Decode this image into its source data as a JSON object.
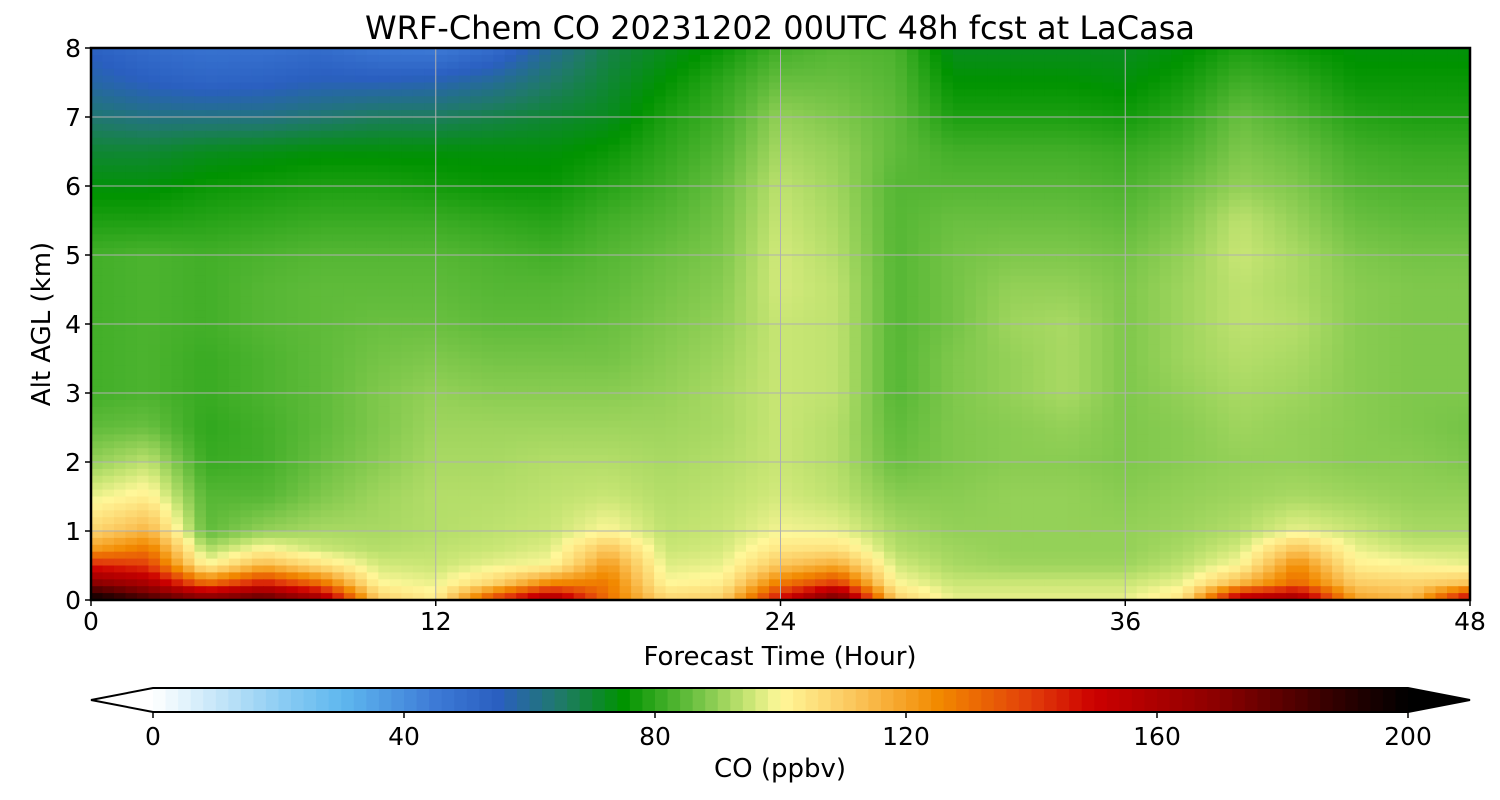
{
  "chart_data": {
    "type": "heatmap",
    "title": "WRF-Chem CO  20231202 00UTC 48h fcst at LaCasa",
    "xlabel": "Forecast Time (Hour)",
    "ylabel": "Alt AGL (km)",
    "xlim": [
      0,
      48
    ],
    "ylim": [
      0,
      8
    ],
    "xticks": [
      0,
      12,
      24,
      36,
      48
    ],
    "yticks": [
      0,
      1,
      2,
      3,
      4,
      5,
      6,
      7,
      8
    ],
    "grid": true,
    "colorbar": {
      "label": "CO  (ppbv)",
      "range": [
        0,
        200
      ],
      "ticks": [
        0,
        40,
        80,
        120,
        160,
        200
      ],
      "extend": "both",
      "placement": "bottom",
      "stops": [
        {
          "v": 0,
          "c": "#ffffff"
        },
        {
          "v": 20,
          "c": "#8ecdf3"
        },
        {
          "v": 30,
          "c": "#5fb8ef"
        },
        {
          "v": 45,
          "c": "#3d7ad6"
        },
        {
          "v": 55,
          "c": "#2a5fc0"
        },
        {
          "v": 65,
          "c": "#1f7a68"
        },
        {
          "v": 75,
          "c": "#009300"
        },
        {
          "v": 85,
          "c": "#5fbb3a"
        },
        {
          "v": 95,
          "c": "#c9e675"
        },
        {
          "v": 100,
          "c": "#fff799"
        },
        {
          "v": 112,
          "c": "#fbc55a"
        },
        {
          "v": 125,
          "c": "#f28a00"
        },
        {
          "v": 140,
          "c": "#e23d0a"
        },
        {
          "v": 150,
          "c": "#cc0000"
        },
        {
          "v": 170,
          "c": "#8a0000"
        },
        {
          "v": 190,
          "c": "#2a0000"
        },
        {
          "v": 200,
          "c": "#000000"
        }
      ]
    },
    "x": [
      0,
      2,
      4,
      6,
      8,
      10,
      12,
      14,
      16,
      18,
      20,
      22,
      24,
      26,
      28,
      30,
      32,
      34,
      36,
      38,
      40,
      42,
      44,
      46,
      48
    ],
    "y": [
      0,
      0.25,
      0.5,
      0.75,
      1,
      1.5,
      2,
      2.5,
      3,
      3.5,
      4,
      4.5,
      5,
      5.5,
      6,
      6.5,
      7,
      7.5,
      8
    ],
    "z": [
      [
        200,
        185,
        175,
        182,
        165,
        110,
        102,
        140,
        165,
        130,
        108,
        110,
        150,
        180,
        110,
        98,
        98,
        98,
        98,
        105,
        160,
        165,
        120,
        115,
        155
      ],
      [
        170,
        160,
        130,
        145,
        130,
        100,
        98,
        108,
        125,
        128,
        100,
        102,
        128,
        140,
        100,
        95,
        95,
        95,
        95,
        98,
        115,
        132,
        110,
        108,
        112
      ],
      [
        145,
        140,
        100,
        115,
        105,
        96,
        95,
        98,
        100,
        122,
        97,
        98,
        112,
        118,
        96,
        92,
        91,
        91,
        91,
        94,
        100,
        125,
        102,
        100,
        98
      ],
      [
        120,
        128,
        92,
        100,
        95,
        93,
        94,
        95,
        97,
        112,
        95,
        96,
        104,
        105,
        93,
        91,
        90,
        90,
        90,
        92,
        96,
        112,
        98,
        95,
        95
      ],
      [
        108,
        116,
        85,
        90,
        92,
        92,
        93,
        94,
        95,
        100,
        94,
        95,
        99,
        98,
        92,
        90,
        90,
        90,
        90,
        91,
        93,
        98,
        95,
        92,
        92
      ],
      [
        98,
        102,
        84,
        84,
        88,
        91,
        93,
        93,
        94,
        95,
        93,
        94,
        96,
        94,
        89,
        89,
        90,
        90,
        89,
        90,
        91,
        92,
        91,
        90,
        90
      ],
      [
        90,
        94,
        81,
        82,
        86,
        89,
        92,
        92,
        93,
        93,
        92,
        93,
        95,
        93,
        86,
        88,
        89,
        89,
        88,
        89,
        90,
        90,
        89,
        89,
        88
      ],
      [
        85,
        86,
        80,
        82,
        85,
        88,
        91,
        91,
        91,
        91,
        91,
        92,
        95,
        93,
        85,
        88,
        89,
        90,
        88,
        89,
        91,
        90,
        89,
        88,
        87
      ],
      [
        82,
        83,
        81,
        83,
        85,
        88,
        90,
        89,
        89,
        89,
        90,
        92,
        95,
        94,
        84,
        88,
        90,
        92,
        88,
        90,
        92,
        91,
        89,
        88,
        88
      ],
      [
        82,
        83,
        81,
        83,
        85,
        87,
        88,
        87,
        87,
        87,
        89,
        91,
        95,
        94,
        84,
        88,
        90,
        92,
        88,
        91,
        93,
        92,
        89,
        88,
        88
      ],
      [
        82,
        83,
        82,
        84,
        85,
        86,
        86,
        85,
        85,
        86,
        88,
        90,
        95,
        94,
        84,
        87,
        91,
        92,
        88,
        91,
        94,
        93,
        89,
        88,
        88
      ],
      [
        82,
        83,
        82,
        84,
        85,
        85,
        85,
        84,
        84,
        85,
        87,
        89,
        96,
        94,
        84,
        87,
        90,
        90,
        88,
        91,
        94,
        92,
        89,
        88,
        88
      ],
      [
        82,
        83,
        82,
        83,
        84,
        84,
        84,
        83,
        82,
        84,
        86,
        88,
        96,
        93,
        84,
        87,
        88,
        88,
        87,
        90,
        95,
        92,
        88,
        87,
        87
      ],
      [
        78,
        78,
        79,
        80,
        81,
        81,
        81,
        80,
        79,
        82,
        84,
        87,
        95,
        92,
        84,
        86,
        86,
        86,
        85,
        88,
        94,
        90,
        86,
        85,
        85
      ],
      [
        74,
        74,
        76,
        77,
        78,
        78,
        77,
        76,
        76,
        79,
        82,
        86,
        94,
        91,
        84,
        84,
        84,
        84,
        83,
        86,
        90,
        88,
        84,
        83,
        83
      ],
      [
        70,
        70,
        72,
        73,
        74,
        74,
        74,
        74,
        74,
        76,
        80,
        84,
        92,
        90,
        85,
        82,
        82,
        82,
        81,
        83,
        88,
        86,
        82,
        81,
        81
      ],
      [
        64,
        62,
        62,
        62,
        64,
        66,
        66,
        68,
        70,
        72,
        78,
        82,
        90,
        88,
        85,
        78,
        78,
        78,
        77,
        80,
        86,
        83,
        79,
        78,
        78
      ],
      [
        58,
        55,
        53,
        54,
        56,
        56,
        57,
        60,
        65,
        70,
        75,
        80,
        86,
        86,
        84,
        75,
        75,
        75,
        74,
        77,
        82,
        80,
        76,
        76,
        76
      ],
      [
        54,
        50,
        48,
        48,
        50,
        46,
        45,
        50,
        60,
        68,
        72,
        76,
        82,
        84,
        83,
        72,
        72,
        72,
        72,
        74,
        78,
        76,
        74,
        74,
        74
      ]
    ]
  }
}
